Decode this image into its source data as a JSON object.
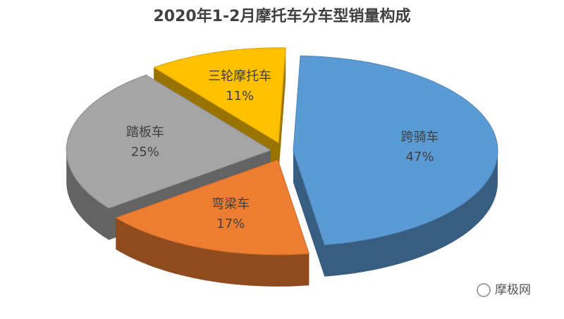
{
  "chart_data": {
    "type": "pie3d",
    "title": "2020年1-2月摩托车分车型销量构成",
    "categories": [
      "跨骑车",
      "弯梁车",
      "踏板车",
      "三轮摩托车"
    ],
    "values": [
      47,
      17,
      25,
      11
    ],
    "value_labels": [
      "47%",
      "17%",
      "25%",
      "11%"
    ],
    "colors": [
      "#5b9bd5",
      "#ed7d31",
      "#a5a5a5",
      "#ffc000"
    ],
    "watermark": "摩极网"
  }
}
